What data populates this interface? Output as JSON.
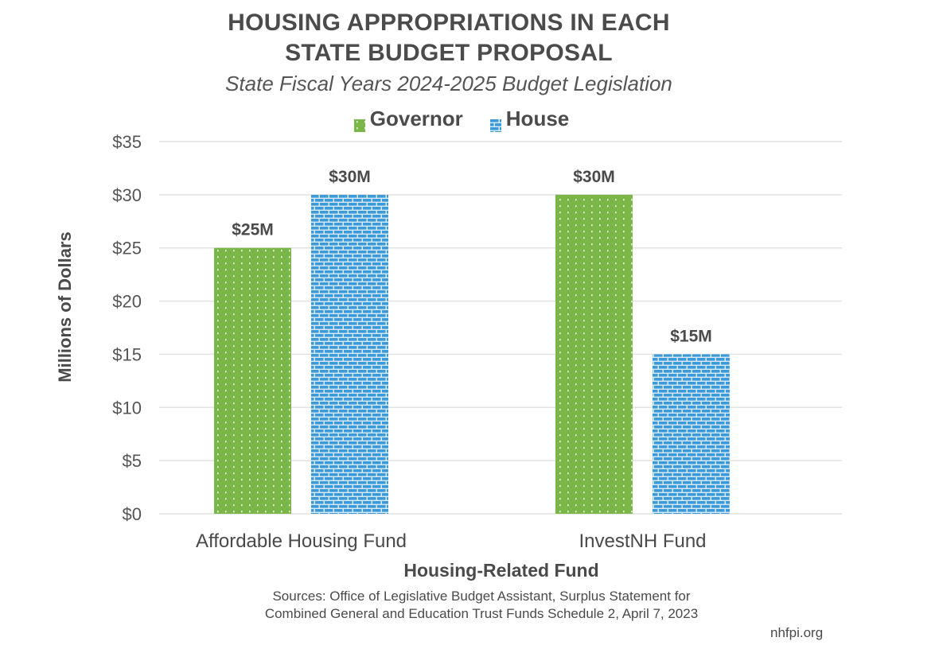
{
  "chart_data": {
    "type": "bar",
    "title": "HOUSING APPROPRIATIONS IN EACH STATE BUDGET PROPOSAL",
    "title_lines": [
      "HOUSING APPROPRIATIONS IN EACH",
      "STATE BUDGET PROPOSAL"
    ],
    "subtitle": "State Fiscal Years 2024-2025 Budget Legislation",
    "xlabel": "Housing-Related Fund",
    "ylabel": "Millions of Dollars",
    "categories": [
      "Affordable Housing Fund",
      "InvestNH Fund"
    ],
    "series": [
      {
        "name": "Governor",
        "values": [
          25,
          30
        ],
        "labels": [
          "$25M",
          "$30M"
        ],
        "color": "#7ab648",
        "pattern": "dots"
      },
      {
        "name": "House",
        "values": [
          30,
          15
        ],
        "labels": [
          "$30M",
          "$15M"
        ],
        "color": "#3d9ad9",
        "pattern": "bricks"
      }
    ],
    "ylim": [
      0,
      35
    ],
    "yticks": [
      0,
      5,
      10,
      15,
      20,
      25,
      30,
      35
    ],
    "ytick_labels": [
      "$0",
      "$5",
      "$10",
      "$15",
      "$20",
      "$25",
      "$30",
      "$35"
    ],
    "grid": true,
    "legend_position": "top-center"
  },
  "sources": {
    "line1": "Sources: Office of Legislative Budget Assistant, Surplus Statement for",
    "line2": "Combined General and Education Trust Funds Schedule 2, April 7, 2023"
  },
  "credit": "nhfpi.org"
}
